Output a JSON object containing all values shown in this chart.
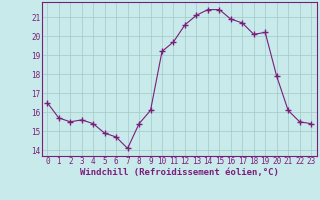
{
  "x": [
    0,
    1,
    2,
    3,
    4,
    5,
    6,
    7,
    8,
    9,
    10,
    11,
    12,
    13,
    14,
    15,
    16,
    17,
    18,
    19,
    20,
    21,
    22,
    23
  ],
  "y": [
    16.5,
    15.7,
    15.5,
    15.6,
    15.4,
    14.9,
    14.7,
    14.1,
    15.4,
    16.1,
    19.2,
    19.7,
    20.6,
    21.1,
    21.4,
    21.4,
    20.9,
    20.7,
    20.1,
    20.2,
    17.9,
    16.1,
    15.5,
    15.4
  ],
  "xlim": [
    -0.5,
    23.5
  ],
  "ylim": [
    13.7,
    21.8
  ],
  "yticks": [
    14,
    15,
    16,
    17,
    18,
    19,
    20,
    21
  ],
  "xticks": [
    0,
    1,
    2,
    3,
    4,
    5,
    6,
    7,
    8,
    9,
    10,
    11,
    12,
    13,
    14,
    15,
    16,
    17,
    18,
    19,
    20,
    21,
    22,
    23
  ],
  "xlabel": "Windchill (Refroidissement éolien,°C)",
  "line_color": "#7b1e7b",
  "marker": "+",
  "marker_size": 4,
  "bg_color": "#c8eaea",
  "grid_color": "#a0c8c8",
  "tick_color": "#7b1e7b",
  "label_color": "#7b1e7b",
  "tick_fontsize": 5.5,
  "xlabel_fontsize": 6.5
}
